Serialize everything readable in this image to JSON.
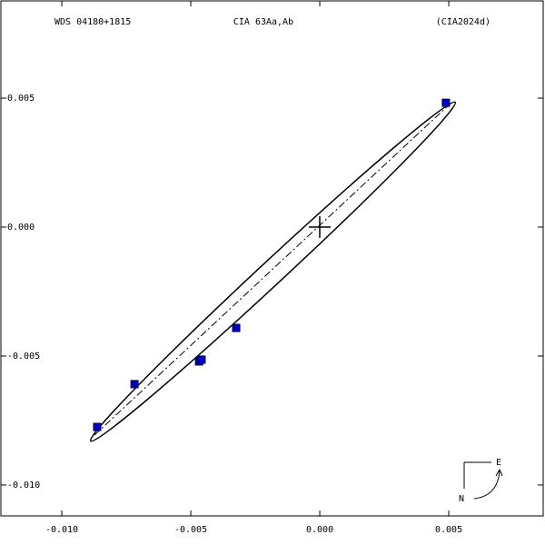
{
  "chart_data": {
    "type": "scatter",
    "title": "CIA  63Aa,Ab",
    "subtitle": "WDS 04180+1815",
    "reference": "(CIA2024d)",
    "x": [
      0.00489,
      -0.00718,
      -0.00863,
      -0.00468,
      -0.00458,
      -0.00324
    ],
    "values": [
      0.00482,
      -0.00609,
      -0.00775,
      -0.00521,
      -0.00514,
      -0.00391
    ],
    "color": "#0000cc",
    "xlim": [
      -0.01236,
      0.00866
    ],
    "ylim": [
      -0.0112,
      0.00877
    ],
    "xticks": [
      {
        "value": -0.01,
        "label": "-0.010"
      },
      -0.005,
      {
        "value": 0,
        "label": "0.000"
      },
      0.005
    ],
    "yticks": [
      0.005,
      {
        "value": 0,
        "label": "0.000"
      },
      -0.005,
      {
        "value": -0.01,
        "label": "-0.010"
      }
    ],
    "grid": false
  },
  "compass": {
    "east": "E",
    "north": "N"
  }
}
